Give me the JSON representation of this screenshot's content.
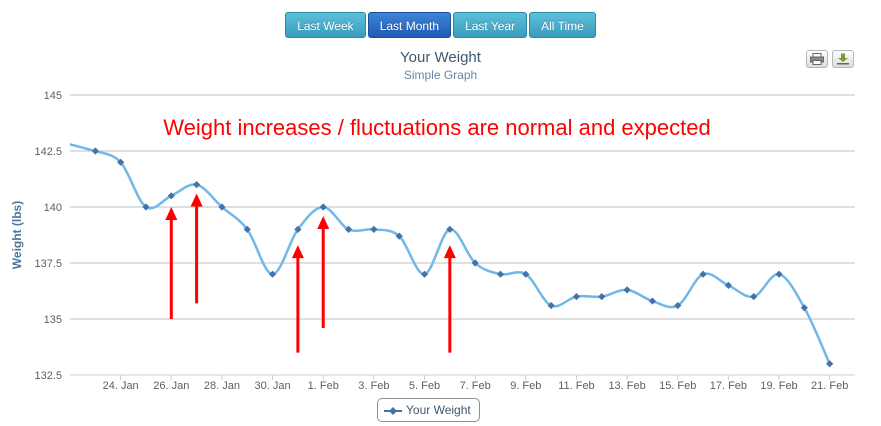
{
  "range_buttons": [
    {
      "label": "Last Week",
      "active": false
    },
    {
      "label": "Last Month",
      "active": true
    },
    {
      "label": "Last Year",
      "active": false
    },
    {
      "label": "All Time",
      "active": false
    }
  ],
  "toolbar": {
    "print_icon": "printer-icon",
    "export_icon": "download-icon"
  },
  "colors": {
    "series": "#4572a7",
    "line": "#6fb8e8",
    "annotation": "#ff0000",
    "grid": "#c0c0c0"
  },
  "chart_data": {
    "type": "line",
    "title": "Your Weight",
    "subtitle": "Simple Graph",
    "xlabel": "",
    "ylabel": "Weight (lbs)",
    "ylim": [
      132.5,
      145
    ],
    "yticks": [
      132.5,
      135,
      137.5,
      140,
      142.5,
      145
    ],
    "yticklabels": [
      "132.5",
      "135",
      "137.5",
      "140",
      "142.5",
      "145"
    ],
    "xlim": [
      "2013-01-22",
      "2013-02-22"
    ],
    "xticks": [
      "2013-01-24",
      "2013-01-26",
      "2013-01-28",
      "2013-01-30",
      "2013-02-01",
      "2013-02-03",
      "2013-02-05",
      "2013-02-07",
      "2013-02-09",
      "2013-02-11",
      "2013-02-13",
      "2013-02-15",
      "2013-02-17",
      "2013-02-19",
      "2013-02-21"
    ],
    "xticklabels": [
      "24. Jan",
      "26. Jan",
      "28. Jan",
      "30. Jan",
      "1. Feb",
      "3. Feb",
      "5. Feb",
      "7. Feb",
      "9. Feb",
      "11. Feb",
      "13. Feb",
      "15. Feb",
      "17. Feb",
      "19. Feb",
      "21. Feb"
    ],
    "grid": true,
    "legend_position": "bottom-center",
    "series": [
      {
        "name": "Your Weight",
        "x": [
          "2013-01-23",
          "2013-01-24",
          "2013-01-25",
          "2013-01-26",
          "2013-01-27",
          "2013-01-28",
          "2013-01-29",
          "2013-01-30",
          "2013-01-31",
          "2013-02-01",
          "2013-02-02",
          "2013-02-03",
          "2013-02-04",
          "2013-02-05",
          "2013-02-06",
          "2013-02-07",
          "2013-02-08",
          "2013-02-09",
          "2013-02-10",
          "2013-02-11",
          "2013-02-12",
          "2013-02-13",
          "2013-02-14",
          "2013-02-15",
          "2013-02-16",
          "2013-02-17",
          "2013-02-18",
          "2013-02-19",
          "2013-02-20",
          "2013-02-21"
        ],
        "y": [
          142.5,
          142.0,
          140.0,
          140.5,
          141.0,
          140.0,
          139.0,
          137.0,
          139.0,
          140.0,
          139.0,
          139.0,
          138.7,
          137.0,
          139.0,
          137.5,
          137.0,
          137.0,
          135.6,
          136.0,
          136.0,
          136.3,
          135.8,
          135.6,
          137.0,
          136.5,
          136.0,
          137.0,
          135.5,
          133.0
        ]
      }
    ],
    "annotation_text": "Weight increases / fluctuations are normal and expected",
    "annotation_arrows": [
      {
        "from": {
          "x": "2013-01-26",
          "y": 135.0
        },
        "to": {
          "x": "2013-01-26",
          "y": 140.0
        }
      },
      {
        "from": {
          "x": "2013-01-27",
          "y": 135.7
        },
        "to": {
          "x": "2013-01-27",
          "y": 140.6
        }
      },
      {
        "from": {
          "x": "2013-01-31",
          "y": 133.5
        },
        "to": {
          "x": "2013-01-31",
          "y": 138.3
        }
      },
      {
        "from": {
          "x": "2013-02-01",
          "y": 134.6
        },
        "to": {
          "x": "2013-02-01",
          "y": 139.6
        }
      },
      {
        "from": {
          "x": "2013-02-06",
          "y": 133.5
        },
        "to": {
          "x": "2013-02-06",
          "y": 138.3
        }
      }
    ]
  }
}
